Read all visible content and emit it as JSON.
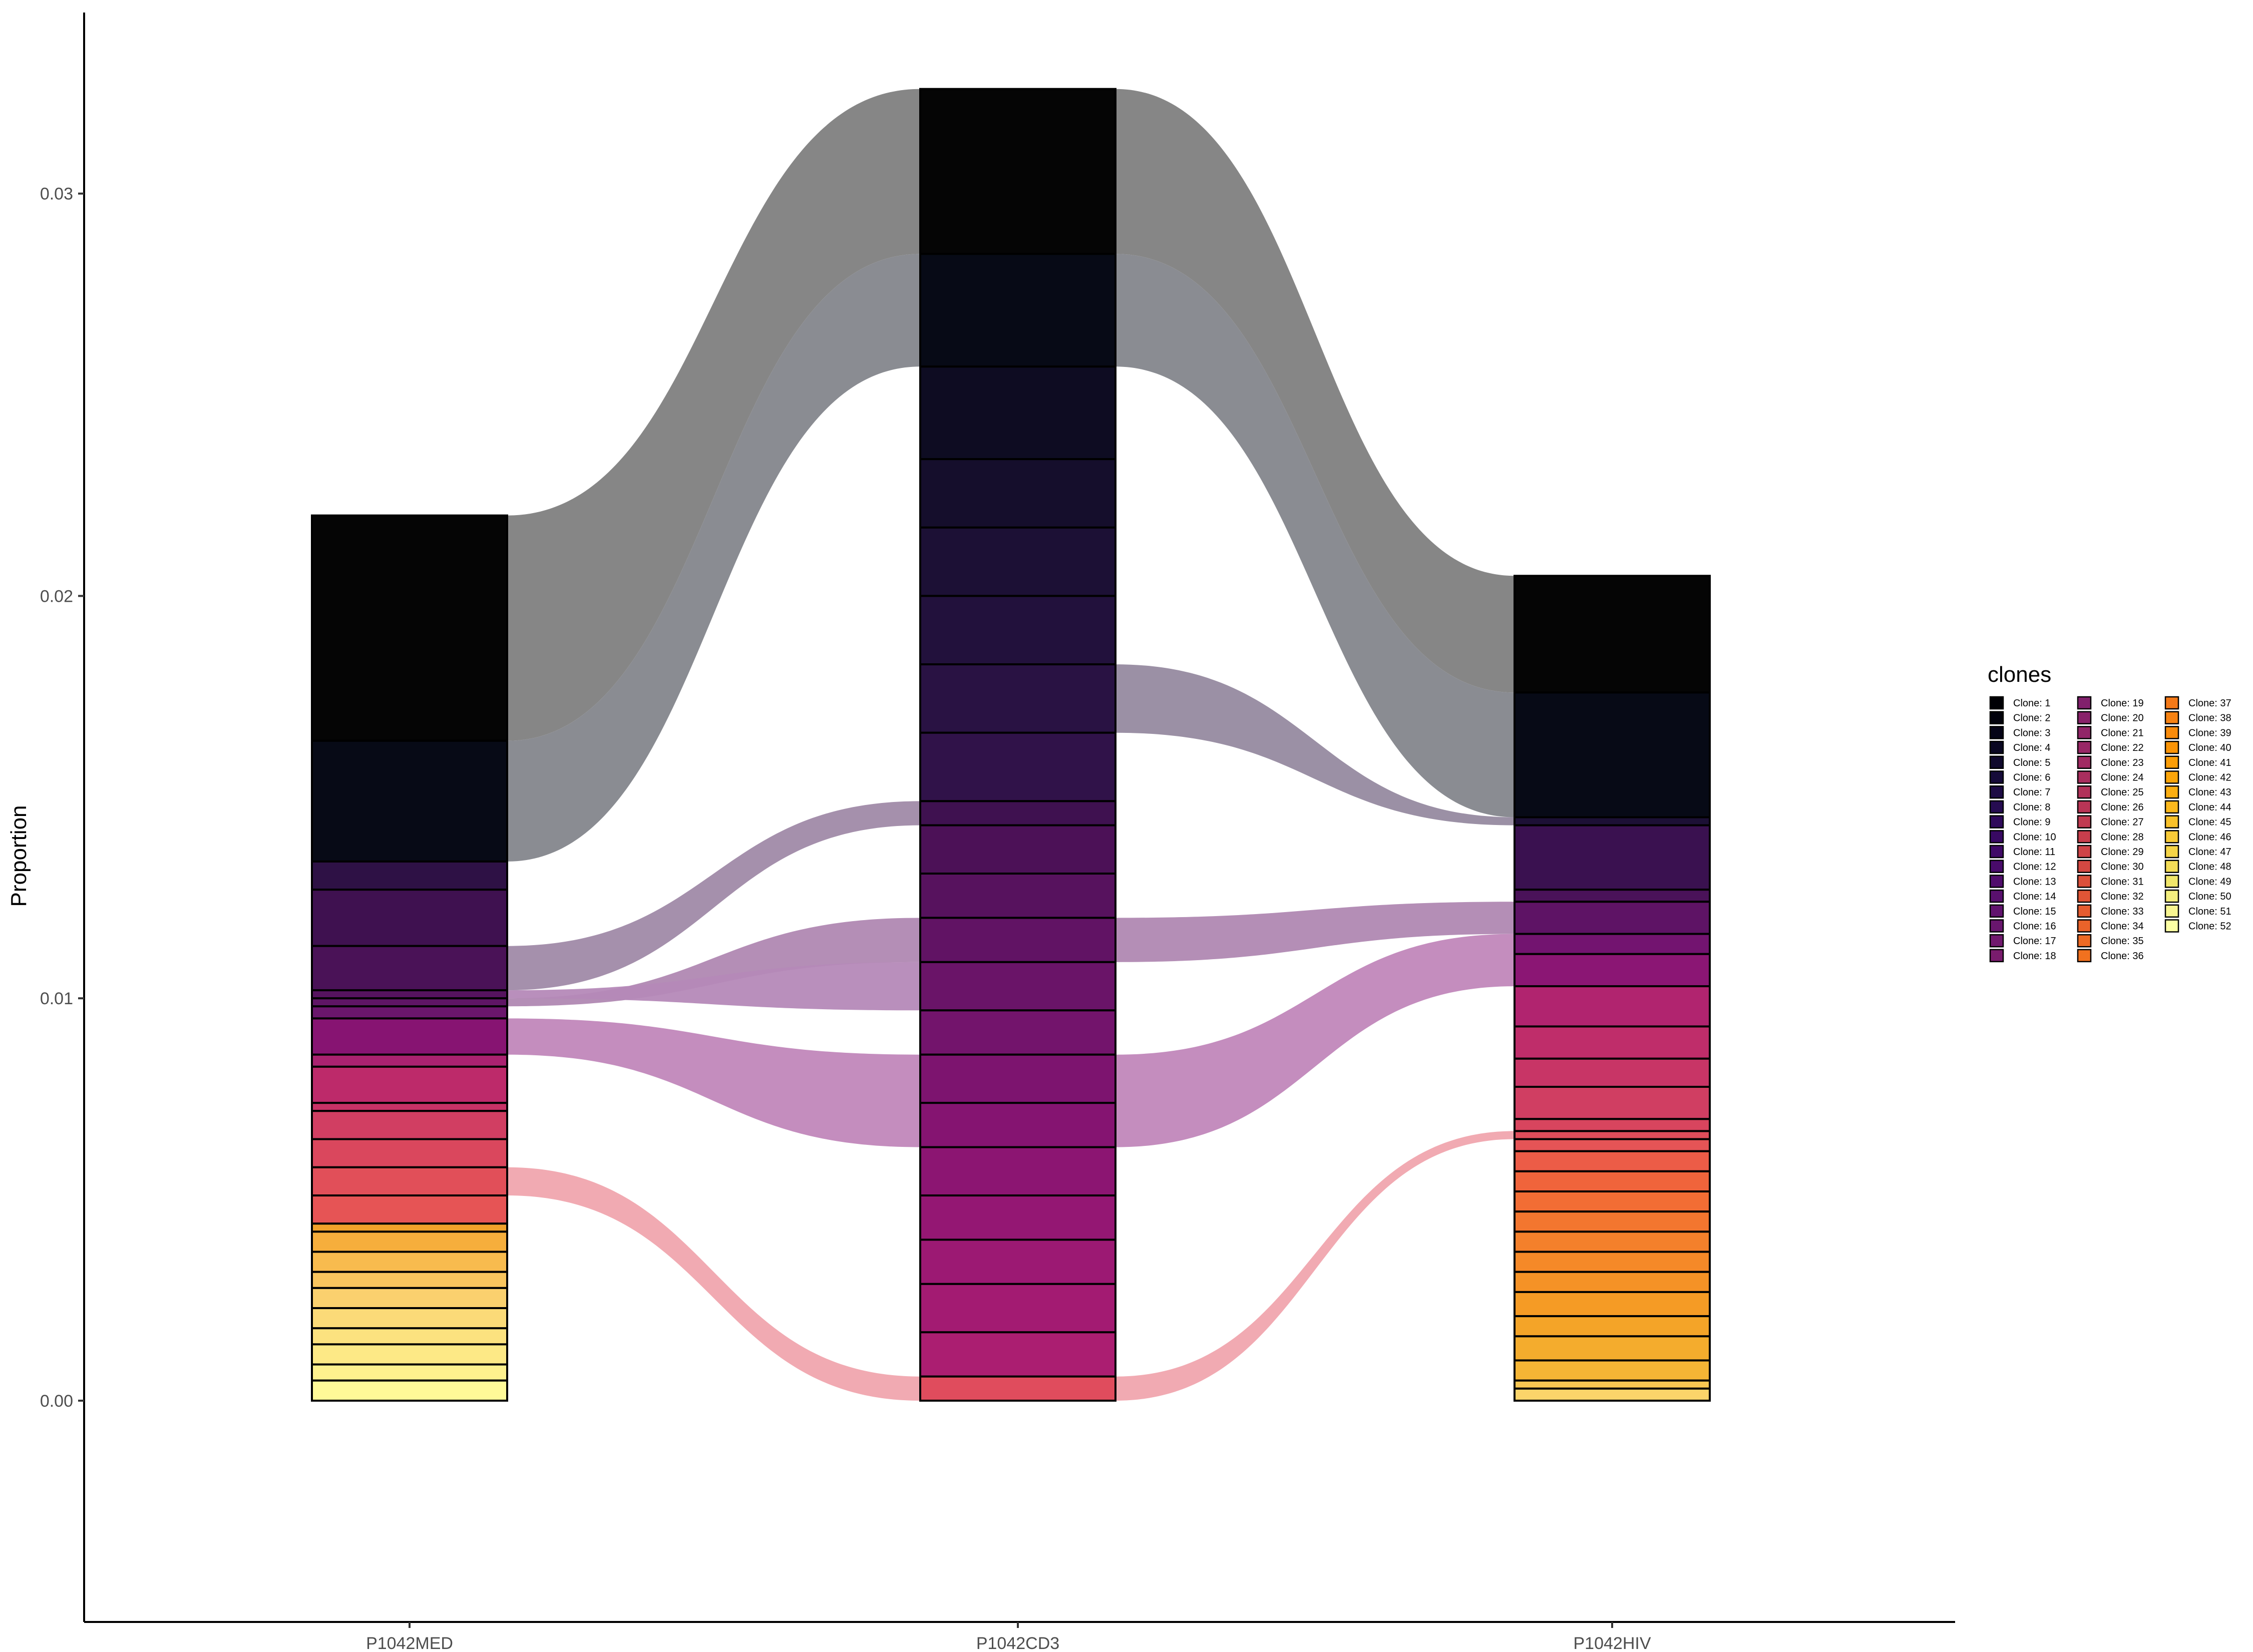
{
  "chart_data": {
    "type": "alluvial",
    "ylabel": "Proportion",
    "ylim": [
      -0.0055,
      0.0345
    ],
    "y_ticks": [
      0.0,
      0.01,
      0.02,
      0.03
    ],
    "y_tick_labels": [
      "0.00",
      "0.01",
      "0.02",
      "0.03"
    ],
    "categories": [
      "P1042MED",
      "P1042CD3",
      "P1042HIV"
    ],
    "legend": {
      "title": "clones",
      "position": "right",
      "items": [
        "Clone: 1",
        "Clone: 2",
        "Clone: 3",
        "Clone: 4",
        "Clone: 5",
        "Clone: 6",
        "Clone: 7",
        "Clone: 8",
        "Clone: 9",
        "Clone: 10",
        "Clone: 11",
        "Clone: 12",
        "Clone: 13",
        "Clone: 14",
        "Clone: 15",
        "Clone: 16",
        "Clone: 17",
        "Clone: 18",
        "Clone: 19",
        "Clone: 20",
        "Clone: 21",
        "Clone: 22",
        "Clone: 23",
        "Clone: 24",
        "Clone: 25",
        "Clone: 26",
        "Clone: 27",
        "Clone: 28",
        "Clone: 29",
        "Clone: 30",
        "Clone: 31",
        "Clone: 32",
        "Clone: 33",
        "Clone: 34",
        "Clone: 35",
        "Clone: 36",
        "Clone: 37",
        "Clone: 38",
        "Clone: 39",
        "Clone: 40",
        "Clone: 41",
        "Clone: 42",
        "Clone: 43",
        "Clone: 44",
        "Clone: 45",
        "Clone: 46",
        "Clone: 47",
        "Clone: 48",
        "Clone: 49",
        "Clone: 50",
        "Clone: 51",
        "Clone: 52"
      ],
      "colors": [
        "#000004",
        "#02020c",
        "#050417",
        "#0a0722",
        "#10092d",
        "#160b39",
        "#1e0c45",
        "#260c51",
        "#2f0a5b",
        "#380962",
        "#400a67",
        "#490b6a",
        "#510e6c",
        "#59106e",
        "#61136e",
        "#69166e",
        "#71196e",
        "#791c6d",
        "#81206c",
        "#89226a",
        "#912568",
        "#992766",
        "#a12a63",
        "#a92e5e",
        "#b1325a",
        "#b93556",
        "#c03a51",
        "#c73e4c",
        "#ce4347",
        "#d44842",
        "#db503b",
        "#e05536",
        "#e55c30",
        "#ea632a",
        "#ee6a24",
        "#f1711f",
        "#f47918",
        "#f78212",
        "#f98b0b",
        "#fa9407",
        "#fb9d07",
        "#fca50a",
        "#fbae12",
        "#fbb81d",
        "#f9c12a",
        "#f8ca38",
        "#f5d447",
        "#f3dc57",
        "#f1e66a",
        "#f3ee7e",
        "#f8f591",
        "#fcffa4"
      ]
    },
    "bars": [
      {
        "name": "P1042MED",
        "segments": [
          {
            "from": 0.0164,
            "to": 0.022,
            "color": "#050505"
          },
          {
            "from": 0.0134,
            "to": 0.0164,
            "color": "#070A16"
          },
          {
            "from": 0.0127,
            "to": 0.0134,
            "color": "#2E1145"
          },
          {
            "from": 0.0113,
            "to": 0.0127,
            "color": "#3F1150"
          },
          {
            "from": 0.0102,
            "to": 0.0113,
            "color": "#4A1257"
          },
          {
            "from": 0.01,
            "to": 0.0102,
            "color": "#56135F"
          },
          {
            "from": 0.0098,
            "to": 0.01,
            "color": "#5F1565"
          },
          {
            "from": 0.0095,
            "to": 0.0098,
            "color": "#6A166C"
          },
          {
            "from": 0.0086,
            "to": 0.0095,
            "color": "#871472"
          },
          {
            "from": 0.0083,
            "to": 0.0086,
            "color": "#AA2270"
          },
          {
            "from": 0.0074,
            "to": 0.0083,
            "color": "#BD2A6A"
          },
          {
            "from": 0.0072,
            "to": 0.0074,
            "color": "#C83266"
          },
          {
            "from": 0.0065,
            "to": 0.0072,
            "color": "#D13E62"
          },
          {
            "from": 0.0058,
            "to": 0.0065,
            "color": "#DA475D"
          },
          {
            "from": 0.0051,
            "to": 0.0058,
            "color": "#E14F59"
          },
          {
            "from": 0.0044,
            "to": 0.0051,
            "color": "#E65455"
          },
          {
            "from": 0.0042,
            "to": 0.0044,
            "color": "#F2A12A"
          },
          {
            "from": 0.0037,
            "to": 0.0042,
            "color": "#F6AE3C"
          },
          {
            "from": 0.0032,
            "to": 0.0037,
            "color": "#F8BB4E"
          },
          {
            "from": 0.0028,
            "to": 0.0032,
            "color": "#F9C55E"
          },
          {
            "from": 0.0023,
            "to": 0.0028,
            "color": "#FAD06E"
          },
          {
            "from": 0.0018,
            "to": 0.0023,
            "color": "#FBDA78"
          },
          {
            "from": 0.0014,
            "to": 0.0018,
            "color": "#FCE27F"
          },
          {
            "from": 0.0009,
            "to": 0.0014,
            "color": "#FDE986"
          },
          {
            "from": 0.0005,
            "to": 0.0009,
            "color": "#FEF18E"
          },
          {
            "from": 0.0,
            "to": 0.0005,
            "color": "#FFFA98"
          }
        ]
      },
      {
        "name": "P1042CD3",
        "segments": [
          {
            "from": 0.0285,
            "to": 0.0326,
            "color": "#050505"
          },
          {
            "from": 0.0257,
            "to": 0.0285,
            "color": "#070A16"
          },
          {
            "from": 0.0234,
            "to": 0.0257,
            "color": "#0E0C22"
          },
          {
            "from": 0.0217,
            "to": 0.0234,
            "color": "#150E2C"
          },
          {
            "from": 0.02,
            "to": 0.0217,
            "color": "#1C1035"
          },
          {
            "from": 0.0183,
            "to": 0.02,
            "color": "#22113C"
          },
          {
            "from": 0.0166,
            "to": 0.0183,
            "color": "#291243"
          },
          {
            "from": 0.0149,
            "to": 0.0166,
            "color": "#301249"
          },
          {
            "from": 0.0143,
            "to": 0.0149,
            "color": "#3F1150"
          },
          {
            "from": 0.0131,
            "to": 0.0143,
            "color": "#4C1157"
          },
          {
            "from": 0.012,
            "to": 0.0131,
            "color": "#57125E"
          },
          {
            "from": 0.0109,
            "to": 0.012,
            "color": "#611364"
          },
          {
            "from": 0.0097,
            "to": 0.0109,
            "color": "#6A1468"
          },
          {
            "from": 0.0086,
            "to": 0.0097,
            "color": "#73146C"
          },
          {
            "from": 0.0074,
            "to": 0.0086,
            "color": "#7D146F"
          },
          {
            "from": 0.0063,
            "to": 0.0074,
            "color": "#851471"
          },
          {
            "from": 0.0051,
            "to": 0.0063,
            "color": "#8C1572"
          },
          {
            "from": 0.004,
            "to": 0.0051,
            "color": "#941773"
          },
          {
            "from": 0.0029,
            "to": 0.004,
            "color": "#9C1973"
          },
          {
            "from": 0.0017,
            "to": 0.0029,
            "color": "#A31B72"
          },
          {
            "from": 0.0006,
            "to": 0.0017,
            "color": "#AB1E71"
          },
          {
            "from": 0.0,
            "to": 0.0006,
            "color": "#E04C5D"
          }
        ]
      },
      {
        "name": "P1042HIV",
        "segments": [
          {
            "from": 0.0176,
            "to": 0.0205,
            "color": "#050505"
          },
          {
            "from": 0.0145,
            "to": 0.0176,
            "color": "#070A16"
          },
          {
            "from": 0.0143,
            "to": 0.0145,
            "color": "#1C1035"
          },
          {
            "from": 0.0127,
            "to": 0.0143,
            "color": "#3A1150"
          },
          {
            "from": 0.0124,
            "to": 0.0127,
            "color": "#4A1259"
          },
          {
            "from": 0.0116,
            "to": 0.0124,
            "color": "#5E1365"
          },
          {
            "from": 0.0111,
            "to": 0.0116,
            "color": "#731470"
          },
          {
            "from": 0.0103,
            "to": 0.0111,
            "color": "#8B1674"
          },
          {
            "from": 0.0093,
            "to": 0.0103,
            "color": "#B1246F"
          },
          {
            "from": 0.0085,
            "to": 0.0093,
            "color": "#BF2D6A"
          },
          {
            "from": 0.0078,
            "to": 0.0085,
            "color": "#C83566"
          },
          {
            "from": 0.007,
            "to": 0.0078,
            "color": "#D03E62"
          },
          {
            "from": 0.0067,
            "to": 0.007,
            "color": "#D8455E"
          },
          {
            "from": 0.0065,
            "to": 0.0067,
            "color": "#DF4D5A"
          },
          {
            "from": 0.0062,
            "to": 0.0065,
            "color": "#E55456"
          },
          {
            "from": 0.0057,
            "to": 0.0062,
            "color": "#EC5C47"
          },
          {
            "from": 0.0052,
            "to": 0.0057,
            "color": "#F0643B"
          },
          {
            "from": 0.0047,
            "to": 0.0052,
            "color": "#F26D34"
          },
          {
            "from": 0.0042,
            "to": 0.0047,
            "color": "#F3762F"
          },
          {
            "from": 0.0037,
            "to": 0.0042,
            "color": "#F4802B"
          },
          {
            "from": 0.0032,
            "to": 0.0037,
            "color": "#F58928"
          },
          {
            "from": 0.0027,
            "to": 0.0032,
            "color": "#F59226"
          },
          {
            "from": 0.0021,
            "to": 0.0027,
            "color": "#F59B25"
          },
          {
            "from": 0.0016,
            "to": 0.0021,
            "color": "#F4A428"
          },
          {
            "from": 0.001,
            "to": 0.0016,
            "color": "#F4AC2D"
          },
          {
            "from": 0.0005,
            "to": 0.001,
            "color": "#F5B535"
          },
          {
            "from": 0.0003,
            "to": 0.0005,
            "color": "#F8C652"
          },
          {
            "from": 0.0,
            "to": 0.0003,
            "color": "#FBD46A"
          }
        ]
      }
    ],
    "flows": [
      {
        "bars": [
          0,
          1
        ],
        "src": [
          0.0164,
          0.022
        ],
        "dst": [
          0.0285,
          0.0326
        ],
        "color": "#808080"
      },
      {
        "bars": [
          0,
          1
        ],
        "src": [
          0.0134,
          0.0164
        ],
        "dst": [
          0.0257,
          0.0285
        ],
        "color": "#84868C"
      },
      {
        "bars": [
          0,
          1
        ],
        "src": [
          0.0102,
          0.0113
        ],
        "dst": [
          0.0143,
          0.0149
        ],
        "color": "#A08AA8"
      },
      {
        "bars": [
          0,
          1
        ],
        "src": [
          0.0098,
          0.01
        ],
        "dst": [
          0.0109,
          0.012
        ],
        "color": "#B088B2"
      },
      {
        "bars": [
          0,
          1
        ],
        "src": [
          0.01,
          0.0102
        ],
        "dst": [
          0.0097,
          0.0109
        ],
        "color": "#B589B8"
      },
      {
        "bars": [
          0,
          1
        ],
        "src": [
          0.0086,
          0.0095
        ],
        "dst": [
          0.0063,
          0.0086
        ],
        "color": "#C187BA"
      },
      {
        "bars": [
          0,
          1
        ],
        "src": [
          0.0051,
          0.0058
        ],
        "dst": [
          0.0,
          0.0006
        ],
        "color": "#F0A5AE"
      },
      {
        "bars": [
          1,
          2
        ],
        "src": [
          0.0285,
          0.0326
        ],
        "dst": [
          0.0176,
          0.0205
        ],
        "color": "#808080"
      },
      {
        "bars": [
          1,
          2
        ],
        "src": [
          0.0257,
          0.0285
        ],
        "dst": [
          0.0145,
          0.0176
        ],
        "color": "#84868C"
      },
      {
        "bars": [
          1,
          2
        ],
        "src": [
          0.0166,
          0.0183
        ],
        "dst": [
          0.0143,
          0.0145
        ],
        "color": "#968AA0"
      },
      {
        "bars": [
          1,
          2
        ],
        "src": [
          0.0109,
          0.012
        ],
        "dst": [
          0.0116,
          0.0124
        ],
        "color": "#B088B2"
      },
      {
        "bars": [
          1,
          2
        ],
        "src": [
          0.0063,
          0.0086
        ],
        "dst": [
          0.0103,
          0.0116
        ],
        "color": "#C187BA"
      },
      {
        "bars": [
          1,
          2
        ],
        "src": [
          0.0,
          0.0006
        ],
        "dst": [
          0.0065,
          0.0067
        ],
        "color": "#F0A5AE"
      }
    ]
  }
}
